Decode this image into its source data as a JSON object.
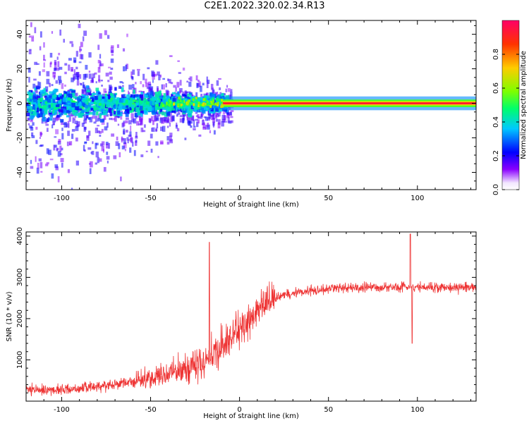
{
  "title": "C2E1.2022.320.02.34.R13",
  "colors": {
    "signal_line": "#ee3333",
    "spectrogram_background": "#ffffff",
    "axis": "#000000"
  },
  "chart_data": [
    {
      "type": "heatmap",
      "name": "spectrogram",
      "xlabel": "Height of straight line (km)",
      "ylabel": "Frequency (Hz)",
      "xlim": [
        -120,
        133
      ],
      "ylim": [
        -50,
        48
      ],
      "x_ticks": [
        -100,
        -50,
        0,
        50,
        100
      ],
      "y_ticks": [
        -40,
        -20,
        0,
        20,
        40
      ],
      "colorbar": {
        "label": "Normalized spectral amplitude",
        "range": [
          0,
          1
        ],
        "ticks": [
          "0.0",
          "0.2",
          "0.4",
          "0.6",
          "0.8"
        ],
        "colormap": [
          "#ffffff",
          "#8a00ff",
          "#0000ff",
          "#00c8ff",
          "#00ff6a",
          "#7dff00",
          "#ffcc00",
          "#ff3300",
          "#ff0066"
        ]
      },
      "description_of_content": [
        {
          "x_range": [
            -120,
            -10
          ],
          "feature": "broadband scatter around 0 Hz, amplitude ~0.1-0.3"
        },
        {
          "x_range": [
            -10,
            133
          ],
          "feature": "narrow band at 0 Hz, amplitude ~0.8-1.0"
        }
      ]
    },
    {
      "type": "line",
      "name": "snr",
      "xlabel": "Height of straight line (km)",
      "ylabel": "SNR (10 * v/v)",
      "xlim": [
        -120,
        133
      ],
      "ylim": [
        0,
        4100
      ],
      "x_ticks": [
        -100,
        -50,
        0,
        50,
        100
      ],
      "y_ticks": [
        1000,
        2000,
        3000,
        4000
      ],
      "series": [
        {
          "name": "SNR",
          "x": [
            -120,
            -110,
            -100,
            -90,
            -80,
            -70,
            -60,
            -50,
            -40,
            -30,
            -20,
            -15,
            -10,
            -5,
            0,
            5,
            10,
            15,
            20,
            25,
            30,
            40,
            50,
            60,
            70,
            80,
            90,
            95,
            100,
            110,
            120,
            130,
            133
          ],
          "y": [
            260,
            270,
            280,
            310,
            360,
            420,
            480,
            560,
            660,
            800,
            950,
            1100,
            1300,
            1500,
            1750,
            1950,
            2150,
            2350,
            2500,
            2580,
            2620,
            2680,
            2720,
            2750,
            2750,
            2760,
            2760,
            2780,
            2760,
            2760,
            2760,
            2760,
            2770
          ]
        }
      ],
      "spikes": [
        {
          "x": -17,
          "y": 3850
        },
        {
          "x": 96,
          "y": 4050
        },
        {
          "x": 97,
          "y": 1400
        }
      ]
    }
  ]
}
